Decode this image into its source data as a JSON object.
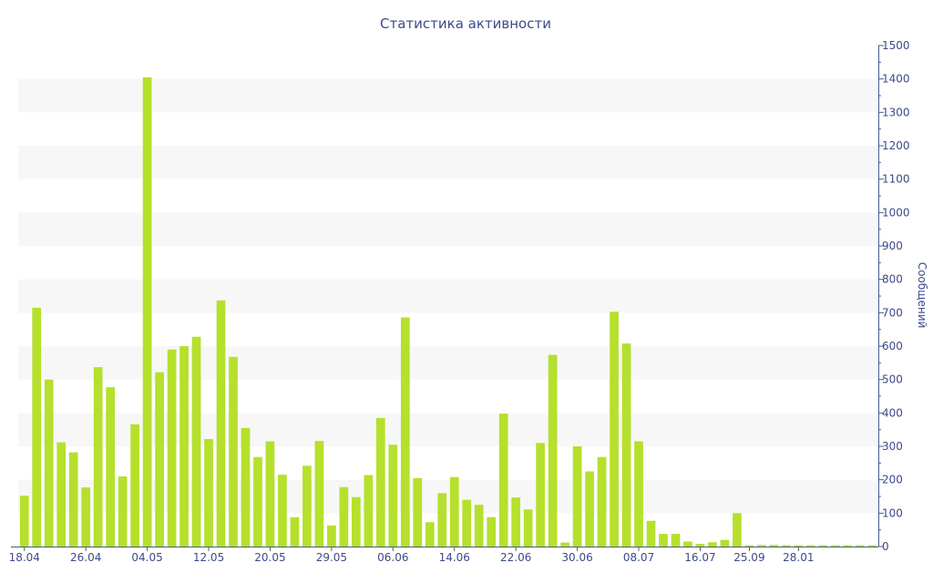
{
  "chart_data": {
    "type": "bar",
    "title": "Статистика активности",
    "xlabel": "",
    "ylabel": "Сообщений",
    "ylim": [
      0,
      1500
    ],
    "y_ticks": [
      0,
      100,
      200,
      300,
      400,
      500,
      600,
      700,
      800,
      900,
      1000,
      1100,
      1200,
      1300,
      1400,
      1500
    ],
    "y_axis_side": "right",
    "grid": "alternating horizontal bands",
    "x_tick_labels": [
      {
        "index": 0,
        "label": "18.04"
      },
      {
        "index": 5,
        "label": "26.04"
      },
      {
        "index": 10,
        "label": "04.05"
      },
      {
        "index": 15,
        "label": "12.05"
      },
      {
        "index": 20,
        "label": "20.05"
      },
      {
        "index": 25,
        "label": "29.05"
      },
      {
        "index": 30,
        "label": "06.06"
      },
      {
        "index": 35,
        "label": "14.06"
      },
      {
        "index": 40,
        "label": "22.06"
      },
      {
        "index": 45,
        "label": "30.06"
      },
      {
        "index": 50,
        "label": "08.07"
      },
      {
        "index": 55,
        "label": "16.07"
      },
      {
        "index": 59,
        "label": "25.09"
      },
      {
        "index": 63,
        "label": "28.01"
      }
    ],
    "values": [
      152,
      715,
      500,
      312,
      282,
      177,
      537,
      477,
      210,
      366,
      1405,
      522,
      590,
      600,
      628,
      322,
      737,
      568,
      355,
      268,
      315,
      215,
      88,
      242,
      316,
      63,
      178,
      148,
      214,
      385,
      305,
      686,
      205,
      73,
      160,
      208,
      140,
      125,
      88,
      398,
      147,
      111,
      310,
      574,
      12,
      300,
      225,
      268,
      703,
      608,
      315,
      77,
      38,
      38,
      15,
      8,
      13,
      20,
      100,
      4,
      5,
      5,
      4,
      4,
      4,
      4,
      4,
      4,
      4,
      4
    ],
    "bar_color": "#b5e02c",
    "band_color": "#f7f7f7",
    "text_color": "#3c4a8a"
  }
}
